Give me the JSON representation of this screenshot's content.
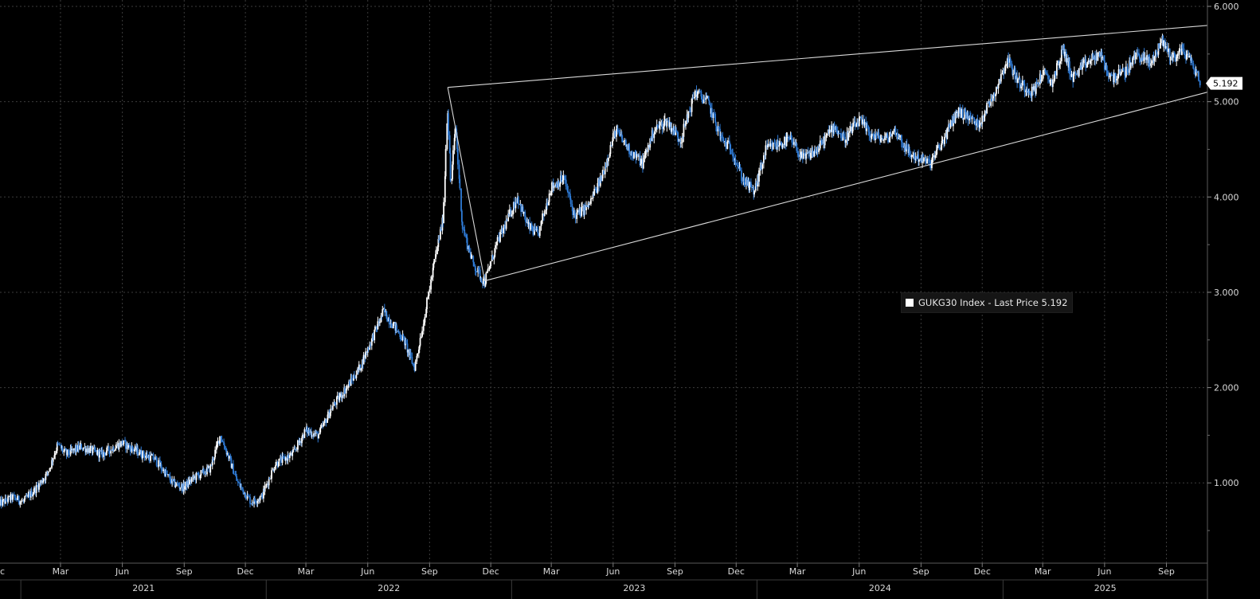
{
  "chart_data": {
    "type": "candlestick",
    "title": "",
    "xlabel": "",
    "ylabel": "",
    "series_name": "GUKG30 Index",
    "legend": {
      "label": "GUKG30 Index - Last Price 5.192",
      "placement": "center-right"
    },
    "last_price": 5.192,
    "last_price_label": "5.192",
    "ylim": [
      0.3,
      6.0
    ],
    "xlim": [
      "2020-12-01",
      "2025-11-01"
    ],
    "grid": true,
    "y_ticks": [
      {
        "value": 1,
        "label": "1.000"
      },
      {
        "value": 2,
        "label": "2.000"
      },
      {
        "value": 3,
        "label": "3.000"
      },
      {
        "value": 4,
        "label": "4.000"
      },
      {
        "value": 5,
        "label": "5.000"
      },
      {
        "value": 6,
        "label": "6.000"
      }
    ],
    "month_ticks": [
      {
        "date": "2021-03-01",
        "label": "Mar"
      },
      {
        "date": "2021-06-01",
        "label": "Jun"
      },
      {
        "date": "2021-09-01",
        "label": "Sep"
      },
      {
        "date": "2021-12-01",
        "label": "Dec"
      },
      {
        "date": "2022-03-01",
        "label": "Mar"
      },
      {
        "date": "2022-06-01",
        "label": "Jun"
      },
      {
        "date": "2022-09-01",
        "label": "Sep"
      },
      {
        "date": "2022-12-01",
        "label": "Dec"
      },
      {
        "date": "2023-03-01",
        "label": "Mar"
      },
      {
        "date": "2023-06-01",
        "label": "Jun"
      },
      {
        "date": "2023-09-01",
        "label": "Sep"
      },
      {
        "date": "2023-12-01",
        "label": "Dec"
      },
      {
        "date": "2024-03-01",
        "label": "Mar"
      },
      {
        "date": "2024-06-01",
        "label": "Jun"
      },
      {
        "date": "2024-09-01",
        "label": "Sep"
      },
      {
        "date": "2024-12-01",
        "label": "Dec"
      },
      {
        "date": "2025-03-01",
        "label": "Mar"
      },
      {
        "date": "2025-06-01",
        "label": "Jun"
      },
      {
        "date": "2025-09-01",
        "label": "Sep"
      }
    ],
    "partial_tick_label": "c",
    "year_labels": [
      {
        "year_start": "2021-01-01",
        "year_end": "2022-01-01",
        "label": "2021"
      },
      {
        "year_start": "2022-01-01",
        "year_end": "2023-01-01",
        "label": "2022"
      },
      {
        "year_start": "2023-01-01",
        "year_end": "2024-01-01",
        "label": "2023"
      },
      {
        "year_start": "2024-01-01",
        "year_end": "2025-01-01",
        "label": "2024"
      },
      {
        "year_start": "2025-01-01",
        "year_end": "2025-11-01",
        "label": "2025"
      }
    ],
    "price_path": [
      [
        "2020-12-01",
        0.78
      ],
      [
        "2020-12-20",
        0.85
      ],
      [
        "2021-01-05",
        0.8
      ],
      [
        "2021-01-25",
        0.95
      ],
      [
        "2021-02-10",
        1.1
      ],
      [
        "2021-02-25",
        1.4
      ],
      [
        "2021-03-10",
        1.3
      ],
      [
        "2021-04-01",
        1.38
      ],
      [
        "2021-05-01",
        1.3
      ],
      [
        "2021-06-01",
        1.42
      ],
      [
        "2021-07-01",
        1.3
      ],
      [
        "2021-07-20",
        1.25
      ],
      [
        "2021-08-15",
        1.0
      ],
      [
        "2021-08-31",
        0.95
      ],
      [
        "2021-09-15",
        1.05
      ],
      [
        "2021-10-10",
        1.15
      ],
      [
        "2021-10-25",
        1.5
      ],
      [
        "2021-11-05",
        1.3
      ],
      [
        "2021-11-20",
        1.0
      ],
      [
        "2021-12-10",
        0.8
      ],
      [
        "2021-12-25",
        0.85
      ],
      [
        "2022-01-15",
        1.2
      ],
      [
        "2022-02-10",
        1.3
      ],
      [
        "2022-03-01",
        1.55
      ],
      [
        "2022-03-20",
        1.5
      ],
      [
        "2022-04-10",
        1.8
      ],
      [
        "2022-05-01",
        2.0
      ],
      [
        "2022-05-20",
        2.2
      ],
      [
        "2022-06-10",
        2.55
      ],
      [
        "2022-06-25",
        2.8
      ],
      [
        "2022-07-10",
        2.65
      ],
      [
        "2022-07-25",
        2.5
      ],
      [
        "2022-08-10",
        2.2
      ],
      [
        "2022-08-25",
        2.75
      ],
      [
        "2022-09-08",
        3.3
      ],
      [
        "2022-09-22",
        3.8
      ],
      [
        "2022-09-28",
        5.0
      ],
      [
        "2022-10-03",
        4.1
      ],
      [
        "2022-10-10",
        4.75
      ],
      [
        "2022-10-20",
        3.7
      ],
      [
        "2022-11-05",
        3.3
      ],
      [
        "2022-11-22",
        3.1
      ],
      [
        "2022-12-10",
        3.5
      ],
      [
        "2023-01-10",
        4.0
      ],
      [
        "2023-01-25",
        3.7
      ],
      [
        "2023-02-10",
        3.6
      ],
      [
        "2023-03-01",
        4.1
      ],
      [
        "2023-03-20",
        4.2
      ],
      [
        "2023-04-05",
        3.8
      ],
      [
        "2023-04-25",
        3.9
      ],
      [
        "2023-05-15",
        4.2
      ],
      [
        "2023-06-05",
        4.7
      ],
      [
        "2023-06-25",
        4.5
      ],
      [
        "2023-07-15",
        4.35
      ],
      [
        "2023-08-01",
        4.7
      ],
      [
        "2023-08-20",
        4.8
      ],
      [
        "2023-09-10",
        4.6
      ],
      [
        "2023-10-01",
        5.1
      ],
      [
        "2023-10-20",
        5.0
      ],
      [
        "2023-11-10",
        4.6
      ],
      [
        "2023-11-25",
        4.5
      ],
      [
        "2023-12-10",
        4.2
      ],
      [
        "2023-12-28",
        4.05
      ],
      [
        "2024-01-15",
        4.5
      ],
      [
        "2024-02-01",
        4.55
      ],
      [
        "2024-02-20",
        4.6
      ],
      [
        "2024-03-10",
        4.4
      ],
      [
        "2024-04-01",
        4.5
      ],
      [
        "2024-04-25",
        4.75
      ],
      [
        "2024-05-10",
        4.6
      ],
      [
        "2024-06-01",
        4.8
      ],
      [
        "2024-06-20",
        4.65
      ],
      [
        "2024-07-10",
        4.6
      ],
      [
        "2024-07-25",
        4.7
      ],
      [
        "2024-08-15",
        4.45
      ],
      [
        "2024-09-01",
        4.4
      ],
      [
        "2024-09-15",
        4.35
      ],
      [
        "2024-10-05",
        4.6
      ],
      [
        "2024-10-25",
        4.9
      ],
      [
        "2024-11-10",
        4.85
      ],
      [
        "2024-11-25",
        4.75
      ],
      [
        "2024-12-20",
        5.1
      ],
      [
        "2025-01-08",
        5.45
      ],
      [
        "2025-01-25",
        5.2
      ],
      [
        "2025-02-15",
        5.1
      ],
      [
        "2025-03-01",
        5.3
      ],
      [
        "2025-03-15",
        5.2
      ],
      [
        "2025-04-01",
        5.55
      ],
      [
        "2025-04-15",
        5.25
      ],
      [
        "2025-05-05",
        5.4
      ],
      [
        "2025-05-25",
        5.5
      ],
      [
        "2025-06-10",
        5.25
      ],
      [
        "2025-07-01",
        5.3
      ],
      [
        "2025-07-20",
        5.5
      ],
      [
        "2025-08-10",
        5.4
      ],
      [
        "2025-08-25",
        5.65
      ],
      [
        "2025-09-10",
        5.45
      ],
      [
        "2025-09-25",
        5.55
      ],
      [
        "2025-10-10",
        5.4
      ],
      [
        "2025-10-22",
        5.192
      ]
    ],
    "trendlines": [
      {
        "name": "upper-trendline",
        "points": [
          [
            "2022-09-28",
            5.15
          ],
          [
            "2025-11-01",
            5.8
          ]
        ]
      },
      {
        "name": "lower-trendline",
        "points": [
          [
            "2022-11-22",
            3.12
          ],
          [
            "2025-11-01",
            5.1
          ]
        ]
      },
      {
        "name": "spike-connector",
        "points": [
          [
            "2022-09-28",
            5.15
          ],
          [
            "2022-11-22",
            3.12
          ]
        ]
      }
    ],
    "colors": {
      "background": "#000000",
      "grid": "#3c3c3c",
      "candle_down": "#2f7bd6",
      "candle_up": "#ffffff",
      "trendline": "#d8d8d8",
      "axis_text": "#d9d9d9",
      "last_price_box": "#ffffff"
    }
  }
}
